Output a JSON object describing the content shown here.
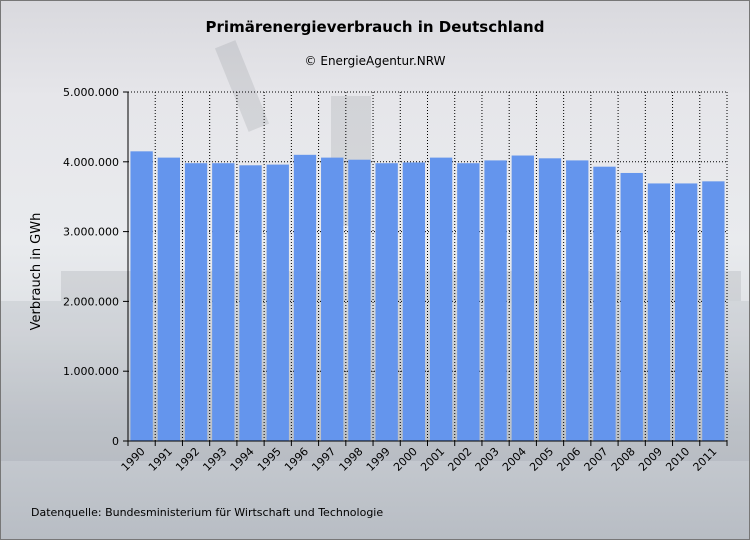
{
  "header": {
    "title": "Primärenergieverbrauch in Deutschland",
    "subtitle": "© EnergieAgentur.NRW"
  },
  "footer": {
    "source": "Datenquelle: Bundesministerium für Wirtschaft und Technologie"
  },
  "colors": {
    "bar": "#6495ed",
    "grid": "#000000"
  },
  "chart_data": {
    "type": "bar",
    "title": "Primärenergieverbrauch in Deutschland",
    "xlabel": "",
    "ylabel": "Verbrauch in GWh",
    "ylim": [
      0,
      5000000
    ],
    "yticks": [
      0,
      1000000,
      2000000,
      3000000,
      4000000,
      5000000
    ],
    "ytick_labels": [
      "0",
      "1.000.000",
      "2.000.000",
      "3.000.000",
      "4.000.000",
      "5.000.000"
    ],
    "grid": true,
    "categories": [
      "1990",
      "1991",
      "1992",
      "1993",
      "1994",
      "1995",
      "1996",
      "1997",
      "1998",
      "1999",
      "2000",
      "2001",
      "2002",
      "2003",
      "2004",
      "2005",
      "2006",
      "2007",
      "2008",
      "2009",
      "2010",
      "2011"
    ],
    "values": [
      4150000,
      4060000,
      3980000,
      3980000,
      3950000,
      3960000,
      4100000,
      4060000,
      4030000,
      3980000,
      3990000,
      4060000,
      3980000,
      4020000,
      4090000,
      4050000,
      4020000,
      3930000,
      3840000,
      3690000,
      3690000,
      3720000
    ]
  }
}
